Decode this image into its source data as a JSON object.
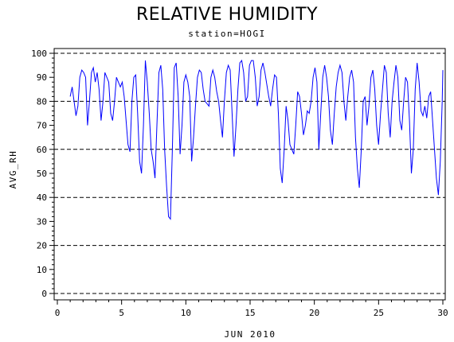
{
  "chart_data": {
    "type": "line",
    "title": "RELATIVE HUMIDITY",
    "subtitle": "station=HOGI",
    "xlabel": "JUN 2010",
    "ylabel": "AVG_RH",
    "xlim": [
      0,
      30
    ],
    "ylim": [
      0,
      100
    ],
    "x_ticks": [
      0,
      5,
      10,
      15,
      20,
      25,
      30
    ],
    "y_ticks": [
      0,
      10,
      20,
      30,
      40,
      50,
      60,
      70,
      80,
      90,
      100
    ],
    "reference_lines": [
      0,
      20,
      40,
      60,
      80,
      100
    ],
    "grid": false,
    "series": [
      {
        "color": "#0000ff",
        "points": [
          [
            1.0,
            82
          ],
          [
            1.15,
            86
          ],
          [
            1.3,
            80
          ],
          [
            1.45,
            74
          ],
          [
            1.6,
            78
          ],
          [
            1.75,
            90
          ],
          [
            1.9,
            93
          ],
          [
            2.05,
            92
          ],
          [
            2.2,
            90
          ],
          [
            2.35,
            70
          ],
          [
            2.5,
            80
          ],
          [
            2.65,
            92
          ],
          [
            2.8,
            94
          ],
          [
            2.95,
            88
          ],
          [
            3.1,
            92
          ],
          [
            3.25,
            85
          ],
          [
            3.4,
            72
          ],
          [
            3.55,
            80
          ],
          [
            3.7,
            92
          ],
          [
            3.85,
            90
          ],
          [
            4.0,
            88
          ],
          [
            4.15,
            75
          ],
          [
            4.3,
            72
          ],
          [
            4.45,
            80
          ],
          [
            4.6,
            90
          ],
          [
            4.75,
            88
          ],
          [
            4.9,
            86
          ],
          [
            5.05,
            88
          ],
          [
            5.2,
            82
          ],
          [
            5.35,
            72
          ],
          [
            5.5,
            62
          ],
          [
            5.65,
            59
          ],
          [
            5.8,
            80
          ],
          [
            5.95,
            90
          ],
          [
            6.1,
            91
          ],
          [
            6.25,
            75
          ],
          [
            6.4,
            55
          ],
          [
            6.55,
            50
          ],
          [
            6.7,
            70
          ],
          [
            6.85,
            97
          ],
          [
            7.0,
            88
          ],
          [
            7.15,
            75
          ],
          [
            7.3,
            60
          ],
          [
            7.45,
            55
          ],
          [
            7.6,
            48
          ],
          [
            7.75,
            70
          ],
          [
            7.9,
            92
          ],
          [
            8.05,
            95
          ],
          [
            8.2,
            85
          ],
          [
            8.35,
            60
          ],
          [
            8.5,
            45
          ],
          [
            8.65,
            32
          ],
          [
            8.8,
            31
          ],
          [
            8.95,
            60
          ],
          [
            9.1,
            94
          ],
          [
            9.25,
            96
          ],
          [
            9.4,
            82
          ],
          [
            9.55,
            58
          ],
          [
            9.7,
            70
          ],
          [
            9.85,
            88
          ],
          [
            10.0,
            91
          ],
          [
            10.15,
            88
          ],
          [
            10.3,
            82
          ],
          [
            10.45,
            55
          ],
          [
            10.6,
            65
          ],
          [
            10.75,
            78
          ],
          [
            10.9,
            90
          ],
          [
            11.05,
            93
          ],
          [
            11.2,
            92
          ],
          [
            11.35,
            85
          ],
          [
            11.5,
            80
          ],
          [
            11.65,
            79
          ],
          [
            11.8,
            78
          ],
          [
            11.95,
            90
          ],
          [
            12.1,
            93
          ],
          [
            12.25,
            90
          ],
          [
            12.4,
            84
          ],
          [
            12.55,
            80
          ],
          [
            12.7,
            72
          ],
          [
            12.85,
            65
          ],
          [
            13.0,
            80
          ],
          [
            13.15,
            92
          ],
          [
            13.3,
            95
          ],
          [
            13.45,
            93
          ],
          [
            13.6,
            75
          ],
          [
            13.75,
            57
          ],
          [
            13.9,
            70
          ],
          [
            14.05,
            85
          ],
          [
            14.2,
            96
          ],
          [
            14.35,
            97
          ],
          [
            14.5,
            92
          ],
          [
            14.65,
            80
          ],
          [
            14.8,
            82
          ],
          [
            14.95,
            95
          ],
          [
            15.1,
            97
          ],
          [
            15.25,
            97
          ],
          [
            15.4,
            90
          ],
          [
            15.55,
            78
          ],
          [
            15.7,
            82
          ],
          [
            15.85,
            93
          ],
          [
            16.0,
            96
          ],
          [
            16.15,
            92
          ],
          [
            16.3,
            87
          ],
          [
            16.45,
            82
          ],
          [
            16.6,
            78
          ],
          [
            16.75,
            85
          ],
          [
            16.9,
            91
          ],
          [
            17.05,
            90
          ],
          [
            17.2,
            75
          ],
          [
            17.35,
            52
          ],
          [
            17.5,
            46
          ],
          [
            17.65,
            60
          ],
          [
            17.8,
            78
          ],
          [
            17.95,
            72
          ],
          [
            18.1,
            62
          ],
          [
            18.25,
            60
          ],
          [
            18.4,
            58
          ],
          [
            18.55,
            70
          ],
          [
            18.7,
            84
          ],
          [
            18.85,
            82
          ],
          [
            19.0,
            75
          ],
          [
            19.15,
            66
          ],
          [
            19.3,
            70
          ],
          [
            19.45,
            76
          ],
          [
            19.6,
            75
          ],
          [
            19.75,
            80
          ],
          [
            19.9,
            90
          ],
          [
            20.05,
            94
          ],
          [
            20.2,
            88
          ],
          [
            20.35,
            60
          ],
          [
            20.5,
            75
          ],
          [
            20.65,
            90
          ],
          [
            20.8,
            95
          ],
          [
            20.95,
            90
          ],
          [
            21.1,
            82
          ],
          [
            21.25,
            68
          ],
          [
            21.4,
            62
          ],
          [
            21.55,
            75
          ],
          [
            21.7,
            86
          ],
          [
            21.85,
            92
          ],
          [
            22.0,
            95
          ],
          [
            22.15,
            92
          ],
          [
            22.3,
            80
          ],
          [
            22.45,
            72
          ],
          [
            22.6,
            82
          ],
          [
            22.75,
            90
          ],
          [
            22.9,
            93
          ],
          [
            23.05,
            88
          ],
          [
            23.2,
            65
          ],
          [
            23.35,
            52
          ],
          [
            23.5,
            44
          ],
          [
            23.65,
            60
          ],
          [
            23.8,
            80
          ],
          [
            23.95,
            82
          ],
          [
            24.1,
            70
          ],
          [
            24.25,
            78
          ],
          [
            24.4,
            90
          ],
          [
            24.55,
            93
          ],
          [
            24.7,
            85
          ],
          [
            24.85,
            70
          ],
          [
            25.0,
            62
          ],
          [
            25.15,
            75
          ],
          [
            25.3,
            85
          ],
          [
            25.45,
            95
          ],
          [
            25.6,
            92
          ],
          [
            25.75,
            75
          ],
          [
            25.9,
            65
          ],
          [
            26.05,
            80
          ],
          [
            26.2,
            88
          ],
          [
            26.35,
            95
          ],
          [
            26.5,
            90
          ],
          [
            26.65,
            72
          ],
          [
            26.8,
            68
          ],
          [
            26.95,
            80
          ],
          [
            27.1,
            90
          ],
          [
            27.25,
            88
          ],
          [
            27.4,
            72
          ],
          [
            27.55,
            50
          ],
          [
            27.7,
            60
          ],
          [
            27.85,
            85
          ],
          [
            28.0,
            96
          ],
          [
            28.15,
            88
          ],
          [
            28.3,
            76
          ],
          [
            28.45,
            74
          ],
          [
            28.6,
            78
          ],
          [
            28.75,
            73
          ],
          [
            28.9,
            82
          ],
          [
            29.05,
            84
          ],
          [
            29.2,
            72
          ],
          [
            29.35,
            60
          ],
          [
            29.5,
            48
          ],
          [
            29.65,
            41
          ],
          [
            29.8,
            55
          ],
          [
            29.95,
            80
          ],
          [
            30.0,
            93
          ]
        ]
      }
    ]
  }
}
